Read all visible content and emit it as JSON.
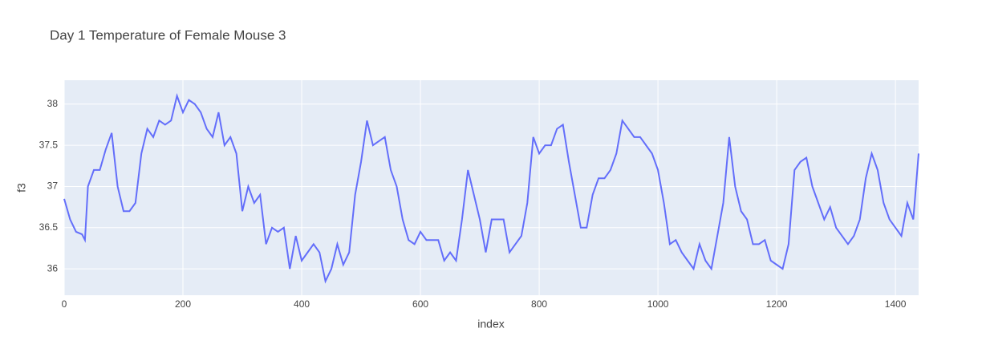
{
  "chart_data": {
    "type": "line",
    "title": "Day 1 Temperature of Female Mouse 3",
    "x_label": "index",
    "y_label": "f3",
    "x": [
      0,
      10,
      20,
      30,
      35,
      40,
      50,
      60,
      70,
      80,
      90,
      100,
      110,
      120,
      130,
      140,
      150,
      160,
      170,
      180,
      190,
      200,
      210,
      220,
      230,
      240,
      250,
      260,
      270,
      280,
      290,
      300,
      310,
      320,
      330,
      340,
      350,
      360,
      370,
      380,
      390,
      400,
      410,
      420,
      430,
      440,
      450,
      460,
      470,
      480,
      490,
      500,
      510,
      520,
      530,
      540,
      550,
      560,
      570,
      580,
      590,
      600,
      610,
      620,
      630,
      640,
      650,
      660,
      670,
      680,
      690,
      700,
      710,
      720,
      730,
      740,
      750,
      760,
      770,
      780,
      790,
      800,
      810,
      820,
      830,
      840,
      850,
      860,
      870,
      880,
      890,
      900,
      910,
      920,
      930,
      940,
      950,
      960,
      970,
      980,
      990,
      1000,
      1010,
      1020,
      1030,
      1040,
      1050,
      1060,
      1070,
      1080,
      1090,
      1100,
      1110,
      1120,
      1130,
      1140,
      1150,
      1160,
      1170,
      1180,
      1190,
      1200,
      1210,
      1220,
      1230,
      1240,
      1250,
      1260,
      1270,
      1280,
      1290,
      1300,
      1310,
      1320,
      1330,
      1340,
      1350,
      1360,
      1370,
      1380,
      1390,
      1400,
      1410,
      1420,
      1430,
      1439
    ],
    "series": [
      {
        "name": "f3",
        "color": "#636efa",
        "values": [
          36.85,
          36.6,
          36.45,
          36.42,
          36.35,
          37.0,
          37.2,
          37.2,
          37.45,
          37.65,
          37.0,
          36.7,
          36.7,
          36.8,
          37.4,
          37.7,
          37.6,
          37.8,
          37.75,
          37.8,
          38.1,
          37.9,
          38.05,
          38.0,
          37.9,
          37.7,
          37.6,
          37.9,
          37.5,
          37.6,
          37.4,
          36.7,
          37.0,
          36.8,
          36.9,
          36.3,
          36.5,
          36.45,
          36.5,
          36.0,
          36.4,
          36.1,
          36.2,
          36.3,
          36.2,
          35.85,
          36.0,
          36.3,
          36.05,
          36.2,
          36.9,
          37.3,
          37.8,
          37.5,
          37.55,
          37.6,
          37.2,
          37.0,
          36.6,
          36.35,
          36.3,
          36.45,
          36.35,
          36.35,
          36.35,
          36.1,
          36.2,
          36.1,
          36.6,
          37.2,
          36.9,
          36.6,
          36.2,
          36.6,
          36.6,
          36.6,
          36.2,
          36.3,
          36.4,
          36.8,
          37.6,
          37.4,
          37.5,
          37.5,
          37.7,
          37.75,
          37.3,
          36.9,
          36.5,
          36.5,
          36.9,
          37.1,
          37.1,
          37.2,
          37.4,
          37.8,
          37.7,
          37.6,
          37.6,
          37.5,
          37.4,
          37.2,
          36.8,
          36.3,
          36.35,
          36.2,
          36.1,
          36.0,
          36.3,
          36.1,
          36.0,
          36.4,
          36.8,
          37.6,
          37.0,
          36.7,
          36.6,
          36.3,
          36.3,
          36.35,
          36.1,
          36.05,
          36.0,
          36.3,
          37.2,
          37.3,
          37.35,
          37.0,
          36.8,
          36.6,
          36.75,
          36.5,
          36.4,
          36.3,
          36.4,
          36.6,
          37.1,
          37.4,
          37.2,
          36.8,
          36.6,
          36.5,
          36.4,
          36.8,
          36.6,
          37.4
        ]
      }
    ],
    "xlim": [
      0,
      1439
    ],
    "xticks": [
      0,
      200,
      400,
      600,
      800,
      1000,
      1200,
      1400
    ],
    "ylim": [
      35.68,
      38.29
    ],
    "yticks": [
      36,
      36.5,
      37,
      37.5,
      38
    ],
    "grid": true
  }
}
